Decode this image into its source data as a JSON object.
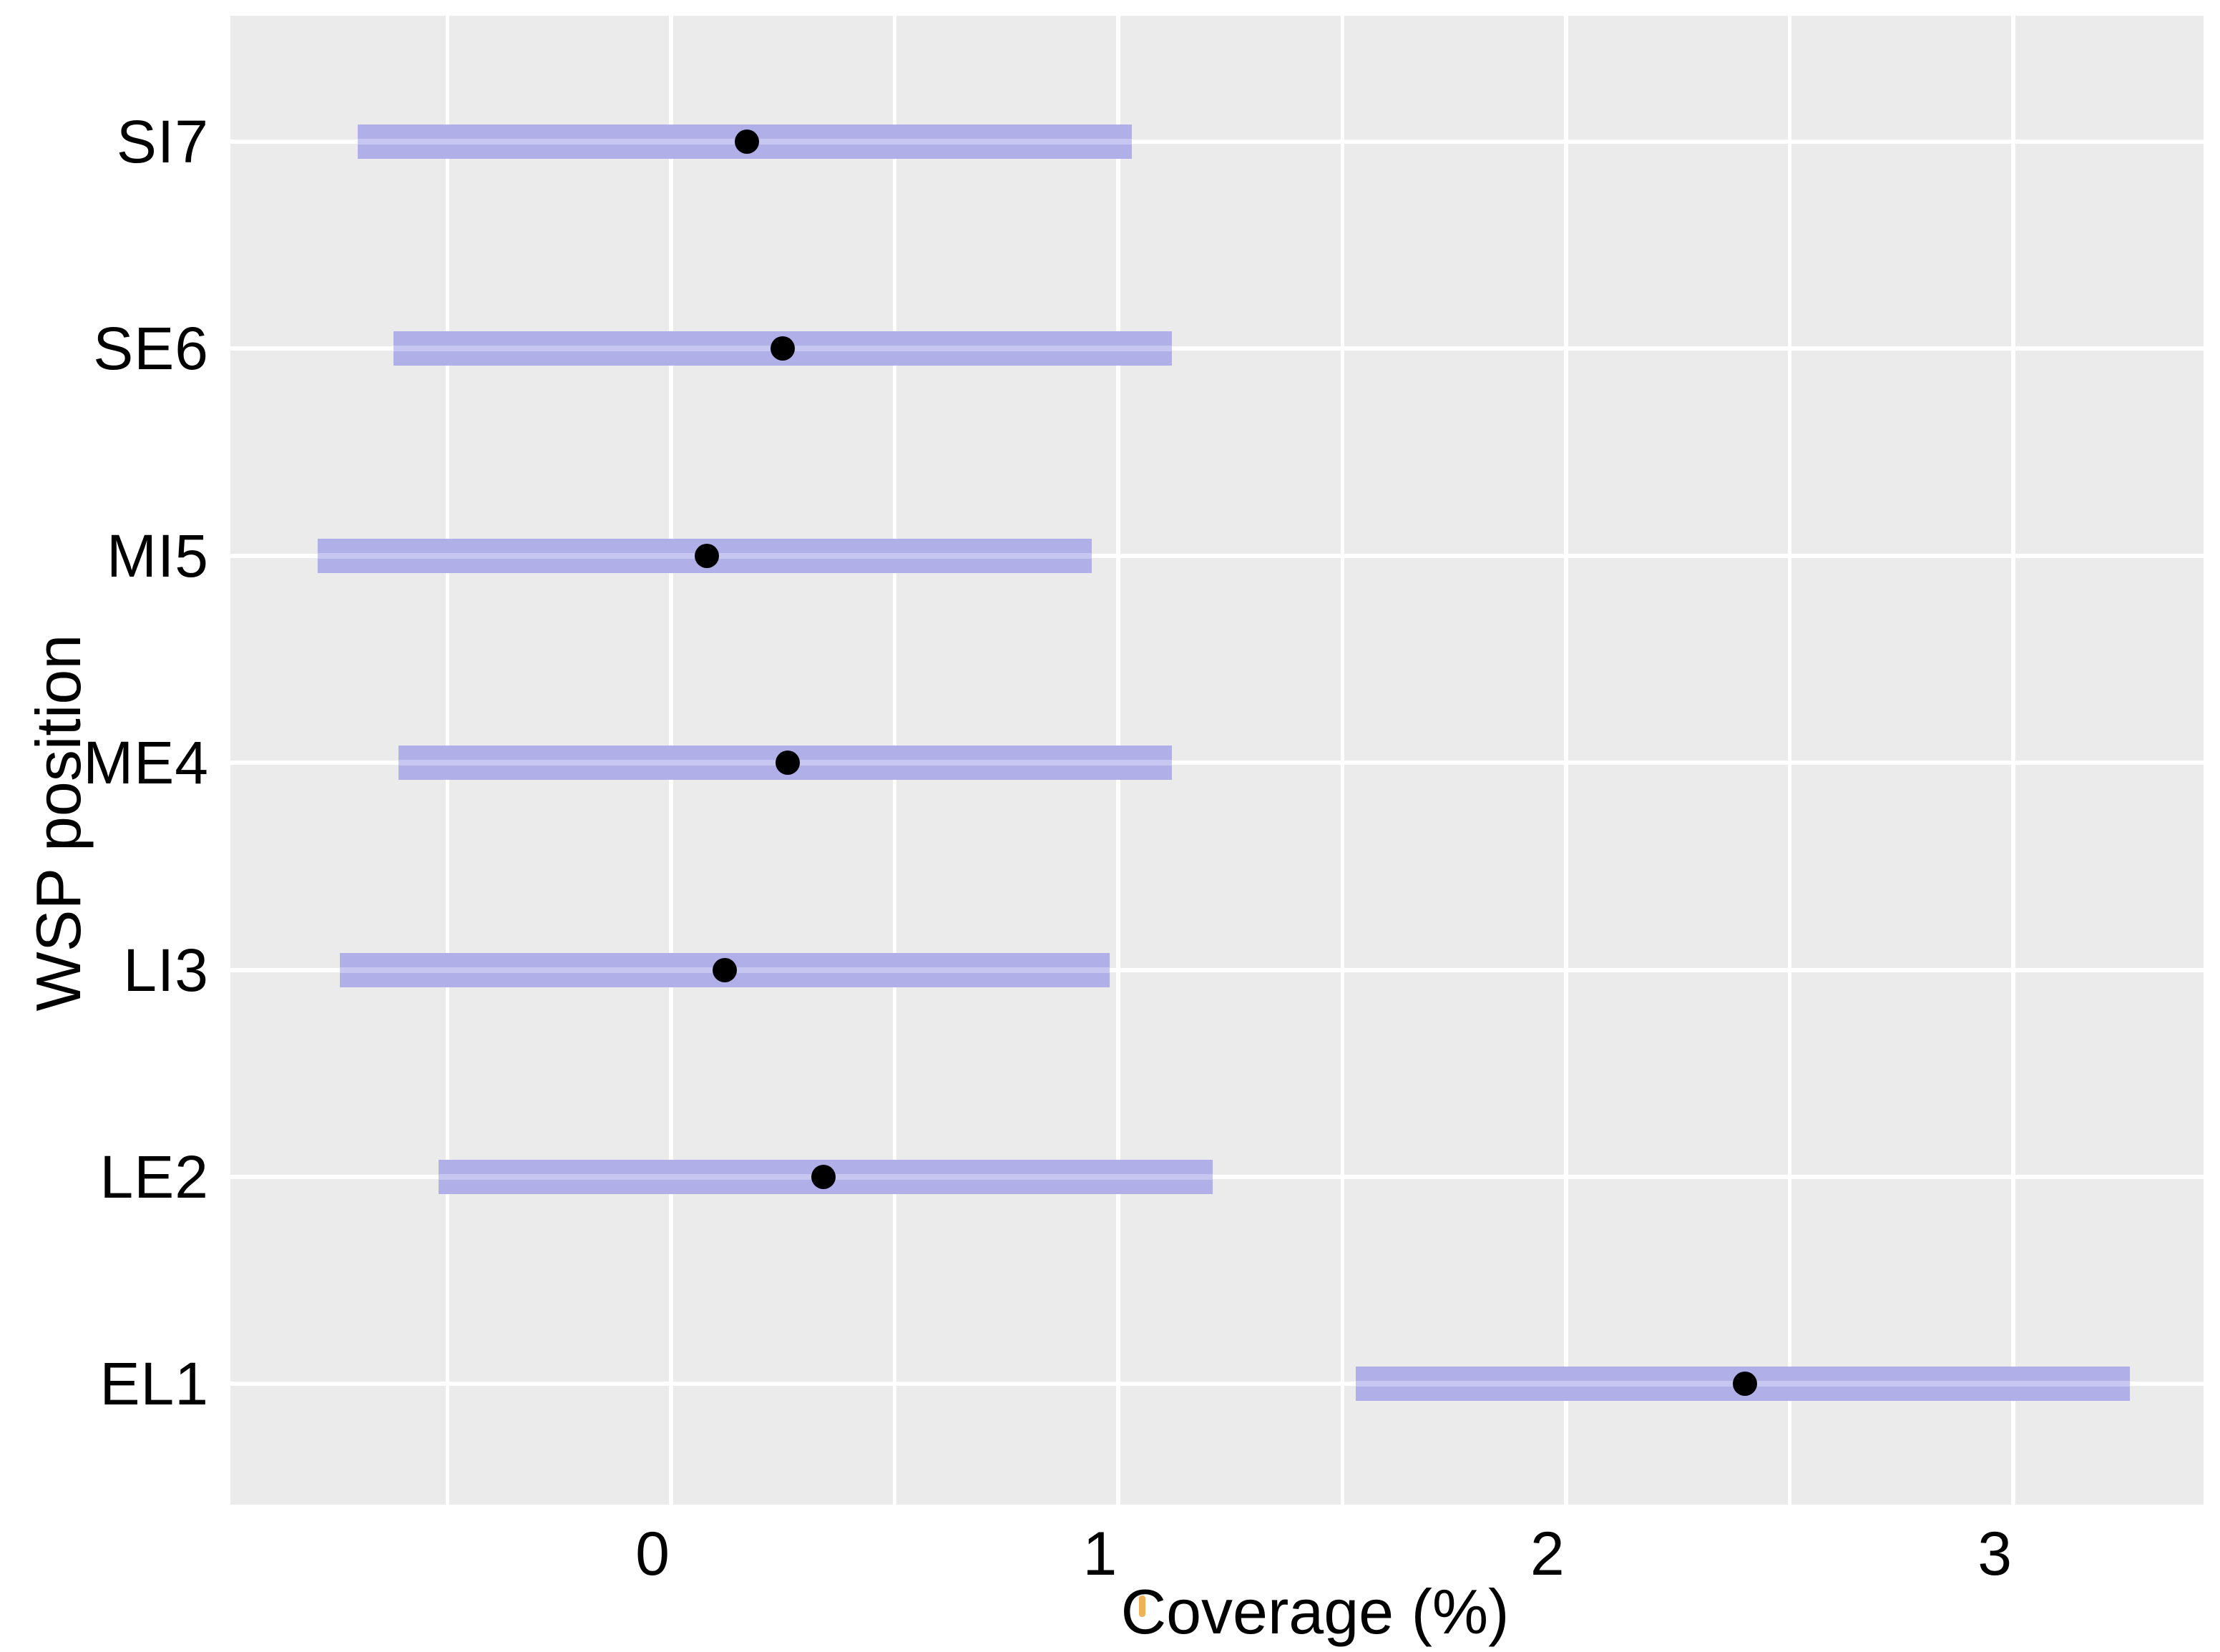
{
  "chart_data": {
    "type": "scatter",
    "subtype": "dot-with-horizontal-interval-bars",
    "title": "",
    "xlabel": "Coverage (%)",
    "ylabel": "WSP position",
    "categories_top_to_bottom": [
      "SI7",
      "SE6",
      "MI5",
      "ME4",
      "LI3",
      "LE2",
      "EL1"
    ],
    "rows": [
      {
        "label": "SI7",
        "value": 0.17,
        "lower": -0.7,
        "upper": 1.03
      },
      {
        "label": "SE6",
        "value": 0.25,
        "lower": -0.62,
        "upper": 1.12
      },
      {
        "label": "MI5",
        "value": 0.08,
        "lower": -0.79,
        "upper": 0.94
      },
      {
        "label": "ME4",
        "value": 0.26,
        "lower": -0.61,
        "upper": 1.12
      },
      {
        "label": "LI3",
        "value": 0.12,
        "lower": -0.74,
        "upper": 0.98
      },
      {
        "label": "LE2",
        "value": 0.34,
        "lower": -0.52,
        "upper": 1.21
      },
      {
        "label": "EL1",
        "value": 2.4,
        "lower": 1.53,
        "upper": 3.26
      }
    ],
    "xlim": [
      -0.985,
      3.425
    ],
    "xticks": [
      0,
      1,
      2,
      3
    ],
    "xtick_labels": [
      "0",
      "1",
      "2",
      "3"
    ],
    "xminor_gridlines": [
      -0.5,
      0.5,
      1.5,
      2.5
    ],
    "legend_position": "none",
    "grid": "white major/minor vertical lines and one white horizontal line per category on grey panel",
    "colors": {
      "interval_bar": "#B1AFE8",
      "interval_bar_gridline_stripe": "#C7C6F1",
      "point": "#000000",
      "panel_background": "#EBEBEB",
      "gridline": "#FFFFFF",
      "text": "#000000",
      "page_background": "#FFFFFF",
      "stray_mark": "#EBA33B"
    }
  }
}
